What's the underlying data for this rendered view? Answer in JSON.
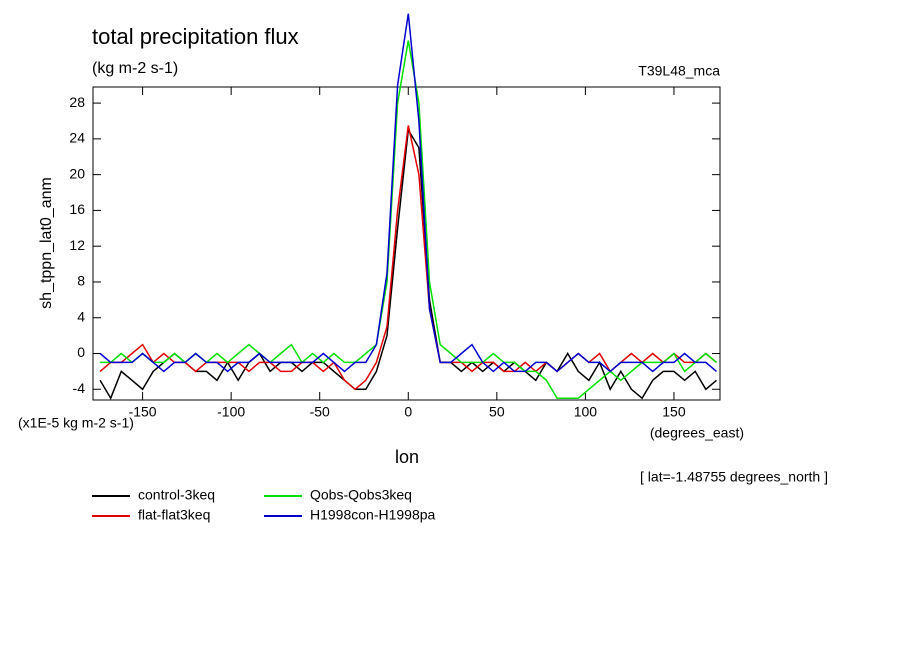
{
  "chart_data": {
    "type": "line",
    "title": "total precipitation flux",
    "subtitle": "(kg m-2 s-1)",
    "annotation": "T39L48_mca",
    "y_label": "sh_tppn_lat0_anm",
    "x_label": "lon",
    "y_units": "(x1E-5 kg m-2 s-1)",
    "x_units": "(degrees_east)",
    "footnote": "[ lat=-1.48755 degrees_north ]",
    "x": [
      -174,
      -168,
      -162,
      -156,
      -150,
      -144,
      -138,
      -132,
      -126,
      -120,
      -114,
      -108,
      -102,
      -96,
      -90,
      -84,
      -78,
      -72,
      -66,
      -60,
      -54,
      -48,
      -42,
      -36,
      -30,
      -24,
      -18,
      -12,
      -6,
      0,
      6,
      12,
      18,
      24,
      30,
      36,
      42,
      48,
      54,
      60,
      66,
      72,
      78,
      84,
      90,
      96,
      102,
      108,
      114,
      120,
      126,
      132,
      138,
      144,
      150,
      156,
      162,
      168,
      174
    ],
    "series": [
      {
        "name": "control-3keq",
        "color": "#000000",
        "values": [
          -3,
          -5,
          -2,
          -3,
          -4,
          -2,
          -1,
          0,
          -1,
          -2,
          -2,
          -3,
          -1,
          -3,
          -1,
          0,
          -2,
          -1,
          -1,
          -2,
          -1,
          -1,
          -2,
          -3,
          -4,
          -4,
          -2,
          2,
          14,
          25,
          23,
          6,
          -1,
          -1,
          -2,
          -1,
          -2,
          -1,
          -2,
          -1,
          -2,
          -3,
          -1,
          -2,
          0,
          -2,
          -3,
          -1,
          -4,
          -2,
          -4,
          -5,
          -3,
          -2,
          -2,
          -3,
          -2,
          -4,
          -3
        ]
      },
      {
        "name": "flat-flat3keq",
        "color": "#e00000",
        "values": [
          -2,
          -1,
          -1,
          0,
          1,
          -1,
          0,
          -1,
          -1,
          -2,
          -1,
          -1,
          -1,
          -1,
          -2,
          -1,
          -1,
          -2,
          -2,
          -1,
          -1,
          -2,
          -1,
          -3,
          -4,
          -3,
          -1,
          3,
          16,
          25.5,
          20,
          5,
          -1,
          -1,
          -1,
          -2,
          -1,
          -1,
          -2,
          -2,
          -1,
          -2,
          -1,
          -2,
          -1,
          0,
          -1,
          0,
          -2,
          -1,
          0,
          -1,
          0,
          -1,
          0,
          -1,
          -1,
          0,
          -1
        ]
      },
      {
        "name": "Qobs-Qobs3keq",
        "color": "#00e000",
        "values": [
          -1,
          -1,
          0,
          -1,
          0,
          -1,
          -1,
          0,
          -1,
          0,
          -1,
          0,
          -1,
          0,
          1,
          0,
          -1,
          0,
          1,
          -1,
          0,
          -1,
          0,
          -1,
          -1,
          0,
          1,
          8,
          28,
          35,
          28,
          8,
          1,
          0,
          -1,
          -1,
          -1,
          0,
          -1,
          -1,
          -2,
          -2,
          -3,
          -5,
          -5,
          -5,
          -4,
          -3,
          -2,
          -3,
          -2,
          -1,
          -1,
          -1,
          0,
          -2,
          -1,
          0,
          -1
        ]
      },
      {
        "name": "H1998con-H1998pa",
        "color": "#0000d0",
        "values": [
          0,
          -1,
          -1,
          -1,
          0,
          -1,
          -2,
          -1,
          -1,
          0,
          -1,
          -1,
          -2,
          -1,
          -1,
          0,
          -1,
          -1,
          -1,
          -1,
          -1,
          0,
          -1,
          -2,
          -1,
          -1,
          1,
          9,
          30,
          38,
          26,
          5,
          -1,
          -1,
          0,
          1,
          -1,
          -2,
          -1,
          -2,
          -2,
          -1,
          -1,
          -2,
          -1,
          0,
          -1,
          -1,
          -2,
          -1,
          -1,
          -1,
          -2,
          -1,
          -1,
          0,
          -1,
          -1,
          -2
        ]
      }
    ],
    "xlim": [
      -178,
      176
    ],
    "xticks": [
      -150,
      -100,
      -50,
      0,
      50,
      100,
      150
    ],
    "ylim": [
      -5.2,
      29.8
    ],
    "yticks": [
      -4,
      0,
      4,
      8,
      12,
      16,
      20,
      24,
      28
    ]
  }
}
